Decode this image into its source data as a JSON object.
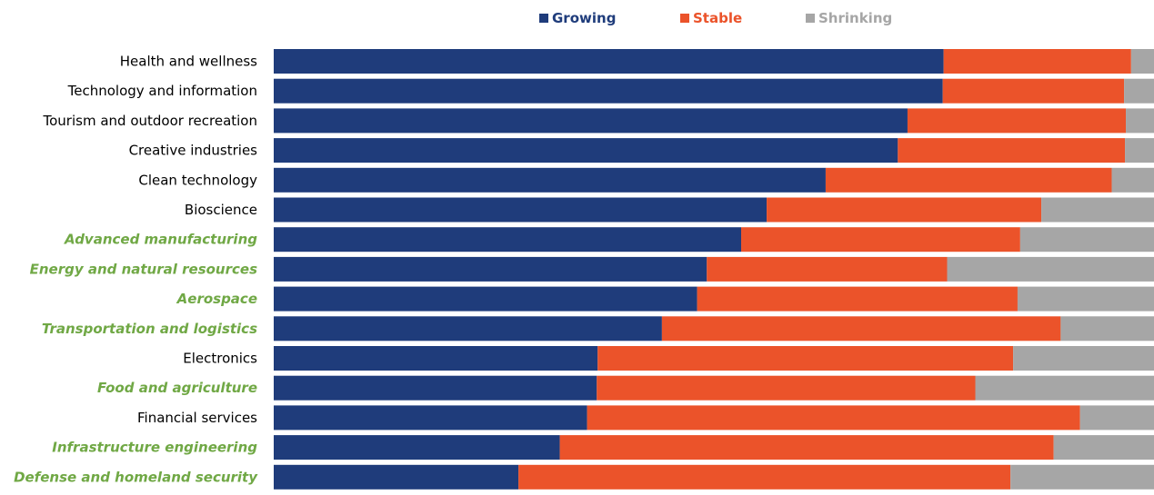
{
  "chart_data": {
    "type": "bar",
    "orientation": "horizontal",
    "stacking": "percent",
    "legend_position": "top",
    "grid": false,
    "categories": [
      "Health and wellness",
      "Technology and information",
      "Tourism and outdoor recreation",
      "Creative industries",
      "Clean technology",
      "Bioscience",
      "Advanced manufacturing",
      "Energy and natural resources",
      "Aerospace",
      "Transportation and logistics",
      "Electronics",
      "Food and agriculture",
      "Financial services",
      "Infrastructure engineering",
      "Defense and homeland security"
    ],
    "highlighted_categories": [
      "Advanced manufacturing",
      "Energy and natural resources",
      "Aerospace",
      "Transportation and logistics",
      "Food and agriculture",
      "Infrastructure engineering",
      "Defense and homeland security"
    ],
    "series": [
      {
        "name": "Growing",
        "color": "#1f3c7b",
        "values": [
          76.1,
          76.0,
          72.0,
          70.9,
          62.7,
          56.0,
          53.1,
          49.2,
          48.1,
          44.1,
          36.8,
          36.7,
          35.6,
          32.5,
          27.8
        ]
      },
      {
        "name": "Stable",
        "color": "#eb532a",
        "values": [
          21.3,
          20.6,
          24.8,
          25.8,
          32.5,
          31.2,
          31.7,
          27.3,
          36.4,
          45.3,
          47.2,
          43.0,
          56.0,
          56.1,
          55.9
        ]
      },
      {
        "name": "Shrinking",
        "color": "#a6a6a6",
        "values": [
          2.6,
          3.4,
          3.2,
          3.3,
          4.8,
          12.8,
          15.2,
          23.5,
          15.5,
          10.6,
          16.0,
          20.3,
          8.4,
          11.4,
          16.3
        ]
      }
    ],
    "xlim": [
      0,
      100
    ],
    "title": "",
    "xlabel": "",
    "ylabel": ""
  },
  "colors": {
    "highlight_label": "#70a845",
    "default_label": "#000000"
  }
}
